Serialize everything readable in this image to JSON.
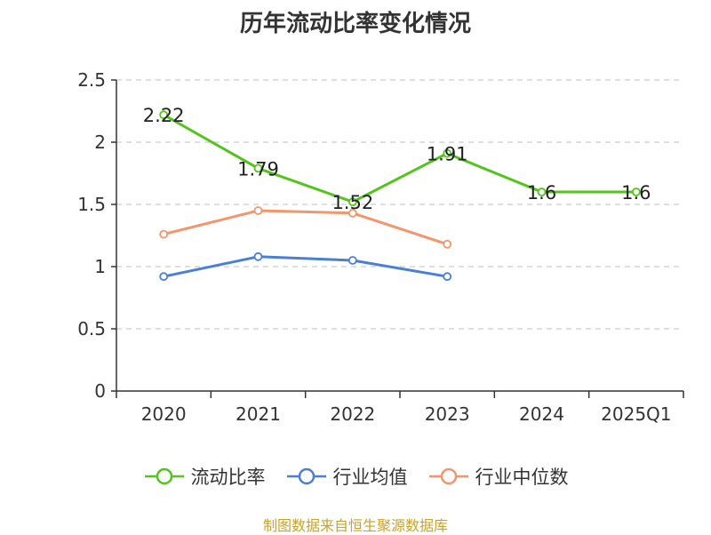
{
  "colors": {
    "current_ratio": "#52c41a",
    "industry_avg": "#4a7fd8",
    "industry_median": "#f4956b",
    "grid": "#cccccc",
    "axis": "#333333",
    "source": "#c9a227"
  },
  "chart_data": {
    "type": "line",
    "title": "历年流动比率变化情况",
    "categories": [
      "2020",
      "2021",
      "2022",
      "2023",
      "2024",
      "2025Q1"
    ],
    "ylim": [
      0,
      2.5
    ],
    "yticks": [
      "0",
      "0.5",
      "1",
      "1.5",
      "2",
      "2.5"
    ],
    "grid": true,
    "legend_position": "bottom",
    "series": [
      {
        "name": "流动比率",
        "key": "current_ratio",
        "values": [
          2.22,
          1.79,
          1.52,
          1.91,
          1.6,
          1.6
        ],
        "labels": [
          "2.22",
          "1.79",
          "1.52",
          "1.91",
          "1.6",
          "1.6"
        ],
        "show_labels": true
      },
      {
        "name": "行业均值",
        "key": "industry_avg",
        "values": [
          0.92,
          1.08,
          1.05,
          0.92,
          null,
          null
        ],
        "show_labels": false
      },
      {
        "name": "行业中位数",
        "key": "industry_median",
        "values": [
          1.26,
          1.45,
          1.43,
          1.18,
          null,
          null
        ],
        "show_labels": false
      }
    ]
  },
  "legend": [
    {
      "label": "流动比率",
      "key": "current_ratio"
    },
    {
      "label": "行业均值",
      "key": "industry_avg"
    },
    {
      "label": "行业中位数",
      "key": "industry_median"
    }
  ],
  "source": "制图数据来自恒生聚源数据库"
}
